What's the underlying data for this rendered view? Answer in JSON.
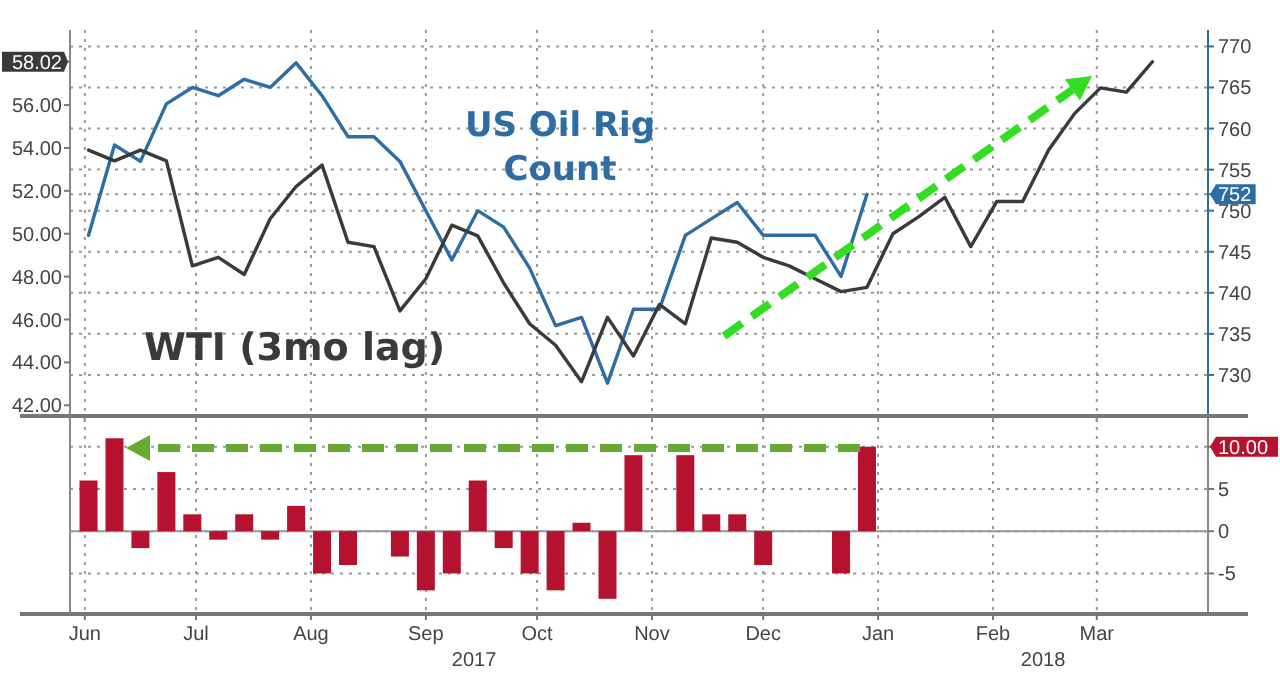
{
  "chart_data": [
    {
      "type": "line",
      "xlim": [
        "2017-05-28",
        "2018-03-31"
      ],
      "xticks": [
        {
          "value": "2017-06-01",
          "label": null
        },
        {
          "value": "2017-07-01",
          "label": null
        },
        {
          "value": "2017-08-01",
          "label": null
        },
        {
          "value": "2017-09-01",
          "label": null
        },
        {
          "value": "2017-10-01",
          "label": null
        },
        {
          "value": "2017-11-01",
          "label": null
        },
        {
          "value": "2017-12-01",
          "label": null
        },
        {
          "value": "2018-01-01",
          "label": null
        },
        {
          "value": "2018-02-01",
          "label": null
        },
        {
          "value": "2018-03-01",
          "label": null
        }
      ],
      "ylim": [
        41.5,
        59.5
      ],
      "yticks": [
        {
          "value": 42,
          "label": "42.00"
        },
        {
          "value": 44,
          "label": "44.00"
        },
        {
          "value": 46,
          "label": "46.00"
        },
        {
          "value": 48,
          "label": "48.00"
        },
        {
          "value": 50,
          "label": "50.00"
        },
        {
          "value": 52,
          "label": "52.00"
        },
        {
          "value": 54,
          "label": "54.00"
        },
        {
          "value": 56,
          "label": "56.00"
        },
        {
          "value": 58.02,
          "label": "58.02"
        }
      ],
      "y2lim": [
        725,
        772
      ],
      "y2ticks": [
        730,
        735,
        740,
        745,
        750,
        755,
        760,
        765,
        770,
        752
      ],
      "grid": true,
      "tick_labels": "y",
      "series": [
        {
          "name": "US Oil Rig Count",
          "color": "#2e6da4",
          "axis": "y2",
          "x": [
            "2017-06-02",
            "2017-06-09",
            "2017-06-16",
            "2017-06-23",
            "2017-06-30",
            "2017-07-07",
            "2017-07-14",
            "2017-07-21",
            "2017-07-28",
            "2017-08-04",
            "2017-08-11",
            "2017-08-18",
            "2017-08-25",
            "2017-09-01",
            "2017-09-08",
            "2017-09-15",
            "2017-09-22",
            "2017-09-29",
            "2017-10-06",
            "2017-10-13",
            "2017-10-20",
            "2017-10-27",
            "2017-11-03",
            "2017-11-10",
            "2017-11-17",
            "2017-11-24",
            "2017-12-01",
            "2017-12-08",
            "2017-12-15",
            "2017-12-22",
            "2017-12-29"
          ],
          "values": [
            747,
            758,
            756,
            763,
            765,
            764,
            766,
            765,
            768,
            764,
            759,
            759,
            756,
            750,
            744,
            750,
            748,
            743,
            736,
            737,
            729,
            738,
            738,
            747,
            749,
            751,
            747,
            747,
            747,
            742,
            752
          ]
        },
        {
          "name": "WTI (3mo lag)",
          "color": "#3a3a3a",
          "x": [
            "2017-06-02",
            "2017-06-09",
            "2017-06-16",
            "2017-06-23",
            "2017-06-30",
            "2017-07-07",
            "2017-07-14",
            "2017-07-21",
            "2017-07-28",
            "2017-08-04",
            "2017-08-11",
            "2017-08-18",
            "2017-08-25",
            "2017-09-01",
            "2017-09-08",
            "2017-09-15",
            "2017-09-22",
            "2017-09-29",
            "2017-10-06",
            "2017-10-13",
            "2017-10-20",
            "2017-10-27",
            "2017-11-03",
            "2017-11-10",
            "2017-11-17",
            "2017-11-24",
            "2017-12-01",
            "2017-12-08",
            "2017-12-15",
            "2017-12-22",
            "2017-12-29",
            "2018-01-05",
            "2018-01-12",
            "2018-01-19",
            "2018-01-26",
            "2018-02-02",
            "2018-02-09",
            "2018-02-16",
            "2018-02-23",
            "2018-03-02",
            "2018-03-09",
            "2018-03-16"
          ],
          "values": [
            53.9,
            53.4,
            53.9,
            53.4,
            48.5,
            48.9,
            48.1,
            50.7,
            52.2,
            53.2,
            49.6,
            49.4,
            46.4,
            47.9,
            50.4,
            49.9,
            47.7,
            45.8,
            44.8,
            43.1,
            46.1,
            44.3,
            46.7,
            45.8,
            49.8,
            49.6,
            48.9,
            48.5,
            47.9,
            47.3,
            47.5,
            50.0,
            50.8,
            51.7,
            49.4,
            51.5,
            51.5,
            53.9,
            55.6,
            56.8,
            56.6,
            58.02
          ]
        }
      ]
    },
    {
      "type": "bar",
      "color": "#b5122f",
      "xlim": [
        "2017-05-28",
        "2018-03-31"
      ],
      "xticks": [
        {
          "value": "2017-06-01",
          "label": "Jun"
        },
        {
          "value": "2017-07-01",
          "label": "Jul"
        },
        {
          "value": "2017-08-01",
          "label": "Aug"
        },
        {
          "value": "2017-09-01",
          "label": "Sep"
        },
        {
          "value": "2017-10-01",
          "label": "Oct"
        },
        {
          "value": "2017-11-01",
          "label": "Nov"
        },
        {
          "value": "2017-12-01",
          "label": "Dec"
        },
        {
          "value": "2018-01-01",
          "label": "Jan"
        },
        {
          "value": "2018-02-01",
          "label": "Feb"
        },
        {
          "value": "2018-03-01",
          "label": "Mar"
        }
      ],
      "ylim": [
        -9.8,
        13.4
      ],
      "yticks": [
        -5,
        0,
        5,
        {
          "value": 10,
          "label": "10.00"
        }
      ],
      "grid": true,
      "x": [
        "2017-06-02",
        "2017-06-09",
        "2017-06-16",
        "2017-06-23",
        "2017-06-30",
        "2017-07-07",
        "2017-07-14",
        "2017-07-21",
        "2017-07-28",
        "2017-08-04",
        "2017-08-11",
        "2017-08-25",
        "2017-09-01",
        "2017-09-08",
        "2017-09-15",
        "2017-09-22",
        "2017-09-29",
        "2017-10-06",
        "2017-10-13",
        "2017-10-20",
        "2017-10-27",
        "2017-11-10",
        "2017-11-17",
        "2017-11-24",
        "2017-12-01",
        "2017-12-22",
        "2017-12-29"
      ],
      "values": [
        6,
        11,
        -2,
        7,
        2,
        -1,
        2,
        -1,
        3,
        -5,
        -4,
        -3,
        -7,
        -5,
        6,
        -2,
        -5,
        -7,
        1,
        -8,
        9,
        9,
        2,
        2,
        -4,
        -5,
        10
      ],
      "annotations": [
        "2017",
        "2018"
      ]
    }
  ]
}
